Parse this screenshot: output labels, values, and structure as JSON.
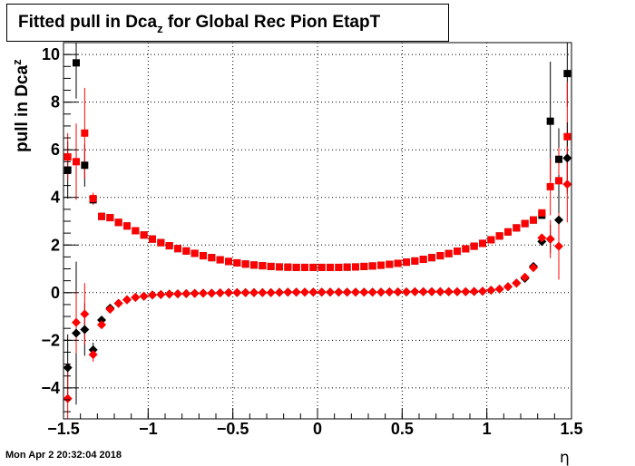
{
  "title": {
    "main": "Fitted pull in Dca",
    "subscript": "z",
    "rest": " for Global Rec Pion EtapT"
  },
  "footer": {
    "timestamp": "Mon Apr  2 20:32:04 2018"
  },
  "chart_data": {
    "type": "scatter",
    "title": "Fitted pull in Dca_z for Global Rec Pion EtapT",
    "xlabel": "η",
    "ylabel": "pull in Dca_z",
    "xlim": [
      -1.5,
      1.5
    ],
    "ylim": [
      -5.3,
      10.5
    ],
    "x_ticks": [
      -1.5,
      -1,
      -0.5,
      0,
      0.5,
      1,
      1.5
    ],
    "x_tick_labels": [
      "−1.5",
      "−1",
      "−0.5",
      "0",
      "0.5",
      "1",
      "1.5"
    ],
    "y_ticks": [
      -4,
      -2,
      0,
      2,
      4,
      6,
      8,
      10
    ],
    "y_tick_labels": [
      "−4",
      "−2",
      "0",
      "2",
      "4",
      "6",
      "8",
      "10"
    ],
    "grid": true,
    "x": [
      -1.475,
      -1.425,
      -1.375,
      -1.325,
      -1.275,
      -1.225,
      -1.175,
      -1.125,
      -1.075,
      -1.025,
      -0.975,
      -0.925,
      -0.875,
      -0.825,
      -0.775,
      -0.725,
      -0.675,
      -0.625,
      -0.575,
      -0.525,
      -0.475,
      -0.425,
      -0.375,
      -0.325,
      -0.275,
      -0.225,
      -0.175,
      -0.125,
      -0.075,
      -0.025,
      0.025,
      0.075,
      0.125,
      0.175,
      0.225,
      0.275,
      0.325,
      0.375,
      0.425,
      0.475,
      0.525,
      0.575,
      0.625,
      0.675,
      0.725,
      0.775,
      0.825,
      0.875,
      0.925,
      0.975,
      1.025,
      1.075,
      1.125,
      1.175,
      1.225,
      1.275,
      1.325,
      1.375,
      1.425,
      1.475
    ],
    "series": [
      {
        "marker": "square",
        "color": "#000000",
        "values": [
          5.15,
          9.65,
          5.35,
          3.9,
          3.2,
          3.15,
          2.95,
          2.8,
          2.6,
          2.42,
          2.25,
          2.1,
          1.97,
          1.85,
          1.75,
          1.65,
          1.55,
          1.47,
          1.38,
          1.31,
          1.25,
          1.2,
          1.16,
          1.13,
          1.1,
          1.08,
          1.07,
          1.06,
          1.06,
          1.06,
          1.06,
          1.06,
          1.06,
          1.07,
          1.08,
          1.1,
          1.12,
          1.15,
          1.19,
          1.23,
          1.28,
          1.33,
          1.4,
          1.47,
          1.55,
          1.64,
          1.74,
          1.84,
          1.95,
          2.07,
          2.22,
          2.38,
          2.55,
          2.72,
          2.9,
          3.05,
          3.25,
          7.2,
          5.6,
          9.2
        ],
        "errors": [
          1.2,
          1.5,
          0.9,
          0.2,
          0.05,
          0.05,
          0.05,
          0.05,
          0.05,
          0.05,
          0.05,
          0.05,
          0.05,
          0.05,
          0.05,
          0.05,
          0.05,
          0.05,
          0.05,
          0.05,
          0.05,
          0.05,
          0.05,
          0.05,
          0.05,
          0.05,
          0.05,
          0.05,
          0.05,
          0.05,
          0.05,
          0.05,
          0.05,
          0.05,
          0.05,
          0.05,
          0.05,
          0.05,
          0.05,
          0.05,
          0.05,
          0.05,
          0.05,
          0.05,
          0.05,
          0.05,
          0.05,
          0.05,
          0.05,
          0.05,
          0.05,
          0.05,
          0.05,
          0.05,
          0.05,
          0.08,
          0.12,
          2.5,
          1.3,
          1.4
        ]
      },
      {
        "marker": "square",
        "color": "#ff0000",
        "values": [
          5.7,
          5.5,
          6.7,
          3.95,
          3.2,
          3.15,
          2.95,
          2.8,
          2.6,
          2.42,
          2.25,
          2.1,
          1.97,
          1.85,
          1.75,
          1.65,
          1.55,
          1.47,
          1.38,
          1.31,
          1.25,
          1.2,
          1.16,
          1.13,
          1.1,
          1.08,
          1.07,
          1.06,
          1.06,
          1.06,
          1.06,
          1.06,
          1.06,
          1.07,
          1.08,
          1.1,
          1.12,
          1.15,
          1.19,
          1.23,
          1.28,
          1.33,
          1.4,
          1.47,
          1.55,
          1.64,
          1.74,
          1.84,
          1.95,
          2.07,
          2.22,
          2.38,
          2.55,
          2.72,
          2.9,
          3.05,
          3.35,
          4.45,
          4.7,
          6.55
        ],
        "errors": [
          1.0,
          1.6,
          1.9,
          0.25,
          0.05,
          0.05,
          0.05,
          0.05,
          0.05,
          0.05,
          0.05,
          0.05,
          0.05,
          0.05,
          0.05,
          0.05,
          0.05,
          0.05,
          0.05,
          0.05,
          0.05,
          0.05,
          0.05,
          0.05,
          0.05,
          0.05,
          0.05,
          0.05,
          0.05,
          0.05,
          0.05,
          0.05,
          0.05,
          0.05,
          0.05,
          0.05,
          0.05,
          0.05,
          0.05,
          0.05,
          0.05,
          0.05,
          0.05,
          0.05,
          0.05,
          0.05,
          0.05,
          0.05,
          0.05,
          0.05,
          0.05,
          0.05,
          0.05,
          0.05,
          0.05,
          0.08,
          0.12,
          1.2,
          1.4,
          2.3
        ]
      },
      {
        "marker": "diamond",
        "color": "#000000",
        "values": [
          -3.15,
          -1.7,
          -1.55,
          -2.4,
          -1.15,
          -0.65,
          -0.45,
          -0.3,
          -0.2,
          -0.15,
          -0.1,
          -0.08,
          -0.06,
          -0.05,
          -0.04,
          -0.03,
          -0.02,
          -0.02,
          -0.01,
          0.0,
          0.0,
          0.0,
          0.0,
          0.0,
          0.0,
          0.01,
          0.02,
          0.02,
          0.02,
          0.02,
          0.02,
          0.02,
          0.02,
          0.02,
          0.02,
          0.02,
          0.02,
          0.02,
          0.03,
          0.03,
          0.03,
          0.04,
          0.04,
          0.04,
          0.04,
          0.04,
          0.04,
          0.04,
          0.05,
          0.06,
          0.1,
          0.15,
          0.25,
          0.4,
          0.6,
          1.1,
          2.15,
          2.25,
          3.05,
          5.65
        ],
        "errors": [
          1.4,
          3.0,
          1.1,
          0.3,
          0.1,
          0.05,
          0.05,
          0.05,
          0.05,
          0.05,
          0.05,
          0.05,
          0.05,
          0.05,
          0.05,
          0.05,
          0.05,
          0.05,
          0.05,
          0.05,
          0.05,
          0.05,
          0.05,
          0.05,
          0.05,
          0.05,
          0.05,
          0.05,
          0.05,
          0.05,
          0.05,
          0.05,
          0.05,
          0.05,
          0.05,
          0.05,
          0.05,
          0.05,
          0.05,
          0.05,
          0.05,
          0.05,
          0.05,
          0.05,
          0.05,
          0.05,
          0.05,
          0.05,
          0.05,
          0.05,
          0.05,
          0.05,
          0.05,
          0.05,
          0.08,
          0.1,
          0.15,
          0.6,
          1.9,
          1.5
        ]
      },
      {
        "marker": "diamond",
        "color": "#ff0000",
        "values": [
          -4.45,
          -1.25,
          -0.9,
          -2.6,
          -1.35,
          -0.7,
          -0.45,
          -0.3,
          -0.2,
          -0.15,
          -0.1,
          -0.08,
          -0.06,
          -0.05,
          -0.04,
          -0.03,
          -0.02,
          -0.02,
          -0.01,
          0.0,
          0.0,
          0.0,
          0.0,
          0.0,
          0.0,
          0.01,
          0.02,
          0.02,
          0.02,
          0.02,
          0.02,
          0.02,
          0.02,
          0.02,
          0.02,
          0.02,
          0.02,
          0.02,
          0.03,
          0.03,
          0.03,
          0.04,
          0.04,
          0.04,
          0.04,
          0.04,
          0.04,
          0.04,
          0.05,
          0.06,
          0.1,
          0.15,
          0.25,
          0.4,
          0.65,
          1.05,
          2.3,
          2.25,
          1.95,
          4.55
        ],
        "errors": [
          1.5,
          1.3,
          1.3,
          0.3,
          0.1,
          0.05,
          0.05,
          0.05,
          0.05,
          0.05,
          0.05,
          0.05,
          0.05,
          0.05,
          0.05,
          0.05,
          0.05,
          0.05,
          0.05,
          0.05,
          0.05,
          0.05,
          0.05,
          0.05,
          0.05,
          0.05,
          0.05,
          0.05,
          0.05,
          0.05,
          0.05,
          0.05,
          0.05,
          0.05,
          0.05,
          0.05,
          0.05,
          0.05,
          0.05,
          0.05,
          0.05,
          0.05,
          0.05,
          0.05,
          0.05,
          0.05,
          0.05,
          0.05,
          0.05,
          0.05,
          0.05,
          0.05,
          0.05,
          0.05,
          0.08,
          0.1,
          0.15,
          0.8,
          1.4,
          1.6
        ]
      }
    ]
  }
}
